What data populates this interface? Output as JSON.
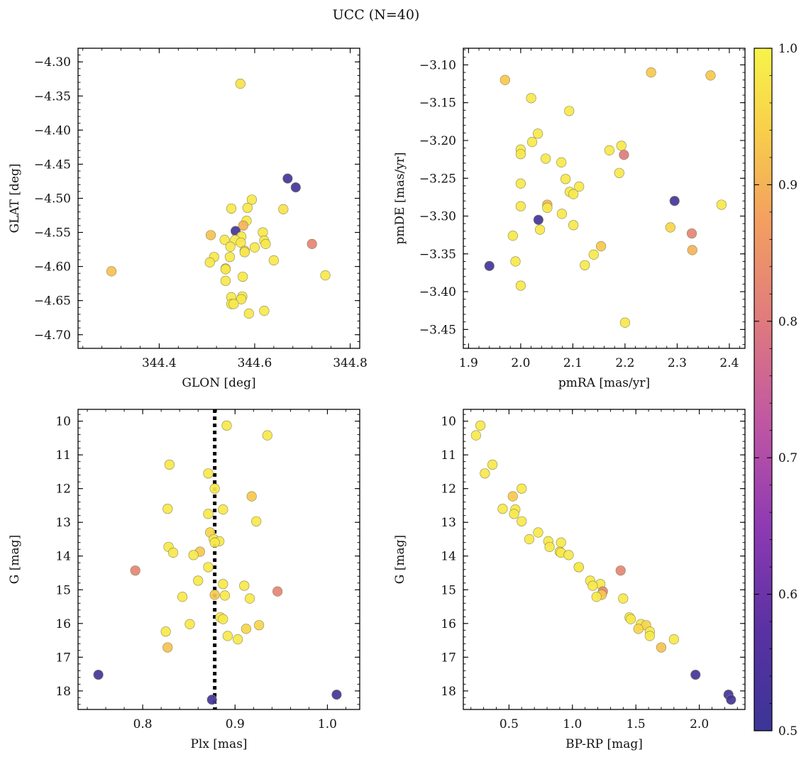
{
  "title": "UCC (N=40)",
  "colorbar": {
    "min": 0.5,
    "max": 1.0,
    "ticks": [
      0.5,
      0.6,
      0.7,
      0.8,
      0.9,
      1.0
    ],
    "tick_labels": [
      "0.5",
      "0.6",
      "0.7",
      "0.8",
      "0.9",
      "1.0"
    ],
    "colormap": "plasma"
  },
  "chart_data": [
    {
      "type": "scatter",
      "xlabel": "GLON [deg]",
      "ylabel": "GLAT [deg]",
      "xlim": [
        344.23,
        344.82
      ],
      "ylim": [
        -4.72,
        -4.28
      ],
      "y_inverted": false,
      "xticks": [
        344.4,
        344.6,
        344.8
      ],
      "xtick_labels": [
        "344.4",
        "344.6",
        "344.8"
      ],
      "yticks": [
        -4.3,
        -4.35,
        -4.4,
        -4.45,
        -4.5,
        -4.55,
        -4.6,
        -4.65,
        -4.7
      ],
      "ytick_labels": [
        "−4.30",
        "−4.35",
        "−4.40",
        "−4.45",
        "−4.50",
        "−4.55",
        "−4.60",
        "−4.65",
        "−4.70"
      ],
      "points": [
        {
          "x": 344.57,
          "y": -4.332,
          "c": 0.97
        },
        {
          "x": 344.669,
          "y": -4.471,
          "c": 0.52
        },
        {
          "x": 344.686,
          "y": -4.484,
          "c": 0.52
        },
        {
          "x": 344.594,
          "y": -4.502,
          "c": 0.98
        },
        {
          "x": 344.551,
          "y": -4.515,
          "c": 0.98
        },
        {
          "x": 344.585,
          "y": -4.514,
          "c": 0.98
        },
        {
          "x": 344.66,
          "y": -4.516,
          "c": 0.97
        },
        {
          "x": 344.583,
          "y": -4.533,
          "c": 0.98
        },
        {
          "x": 344.576,
          "y": -4.54,
          "c": 0.9
        },
        {
          "x": 344.56,
          "y": -4.548,
          "c": 0.52
        },
        {
          "x": 344.508,
          "y": -4.554,
          "c": 0.92
        },
        {
          "x": 344.617,
          "y": -4.55,
          "c": 0.98
        },
        {
          "x": 344.572,
          "y": -4.556,
          "c": 0.98
        },
        {
          "x": 344.559,
          "y": -4.561,
          "c": 0.98
        },
        {
          "x": 344.537,
          "y": -4.561,
          "c": 0.98
        },
        {
          "x": 344.62,
          "y": -4.562,
          "c": 0.98
        },
        {
          "x": 344.571,
          "y": -4.565,
          "c": 0.98
        },
        {
          "x": 344.623,
          "y": -4.567,
          "c": 0.98
        },
        {
          "x": 344.72,
          "y": -4.567,
          "c": 0.82
        },
        {
          "x": 344.549,
          "y": -4.571,
          "c": 0.98
        },
        {
          "x": 344.6,
          "y": -4.572,
          "c": 0.98
        },
        {
          "x": 344.579,
          "y": -4.577,
          "c": 0.93
        },
        {
          "x": 344.579,
          "y": -4.579,
          "c": 0.98
        },
        {
          "x": 344.515,
          "y": -4.586,
          "c": 0.98
        },
        {
          "x": 344.548,
          "y": -4.586,
          "c": 0.98
        },
        {
          "x": 344.64,
          "y": -4.591,
          "c": 0.98
        },
        {
          "x": 344.506,
          "y": -4.594,
          "c": 0.98
        },
        {
          "x": 344.539,
          "y": -4.603,
          "c": 0.93
        },
        {
          "x": 344.539,
          "y": -4.604,
          "c": 0.98
        },
        {
          "x": 344.3,
          "y": -4.607,
          "c": 0.92
        },
        {
          "x": 344.748,
          "y": -4.613,
          "c": 0.98
        },
        {
          "x": 344.575,
          "y": -4.615,
          "c": 0.98
        },
        {
          "x": 344.539,
          "y": -4.621,
          "c": 0.98
        },
        {
          "x": 344.574,
          "y": -4.644,
          "c": 0.98
        },
        {
          "x": 344.551,
          "y": -4.645,
          "c": 0.98
        },
        {
          "x": 344.572,
          "y": -4.648,
          "c": 0.98
        },
        {
          "x": 344.551,
          "y": -4.655,
          "c": 0.98
        },
        {
          "x": 344.62,
          "y": -4.665,
          "c": 0.98
        },
        {
          "x": 344.588,
          "y": -4.669,
          "c": 0.98
        },
        {
          "x": 344.556,
          "y": -4.655,
          "c": 0.98
        }
      ]
    },
    {
      "type": "scatter",
      "xlabel": "pmRA [mas/yr]",
      "ylabel": "pmDE [mas/yr]",
      "xlim": [
        1.89,
        2.43
      ],
      "ylim": [
        -3.475,
        -3.078
      ],
      "y_inverted": false,
      "xticks": [
        1.9,
        2.0,
        2.1,
        2.2,
        2.3,
        2.4
      ],
      "xtick_labels": [
        "1.9",
        "2.0",
        "2.1",
        "2.2",
        "2.3",
        "2.4"
      ],
      "yticks": [
        -3.1,
        -3.15,
        -3.2,
        -3.25,
        -3.3,
        -3.35,
        -3.4,
        -3.45
      ],
      "ytick_labels": [
        "−3.10",
        "−3.15",
        "−3.20",
        "−3.25",
        "−3.30",
        "−3.35",
        "−3.40",
        "−3.45"
      ],
      "points": [
        {
          "x": 1.97,
          "y": -3.12,
          "c": 0.93
        },
        {
          "x": 2.25,
          "y": -3.11,
          "c": 0.93
        },
        {
          "x": 2.364,
          "y": -3.114,
          "c": 0.93
        },
        {
          "x": 2.02,
          "y": -3.144,
          "c": 0.98
        },
        {
          "x": 2.093,
          "y": -3.161,
          "c": 0.98
        },
        {
          "x": 2.033,
          "y": -3.191,
          "c": 0.98
        },
        {
          "x": 2.022,
          "y": -3.202,
          "c": 0.98
        },
        {
          "x": 2.193,
          "y": -3.207,
          "c": 0.98
        },
        {
          "x": 2.0,
          "y": -3.212,
          "c": 0.98
        },
        {
          "x": 2.17,
          "y": -3.213,
          "c": 0.98
        },
        {
          "x": 2.0,
          "y": -3.218,
          "c": 0.98
        },
        {
          "x": 2.198,
          "y": -3.219,
          "c": 0.8
        },
        {
          "x": 2.048,
          "y": -3.224,
          "c": 0.98
        },
        {
          "x": 2.078,
          "y": -3.229,
          "c": 0.98
        },
        {
          "x": 2.189,
          "y": -3.243,
          "c": 0.98
        },
        {
          "x": 2.086,
          "y": -3.251,
          "c": 0.98
        },
        {
          "x": 2.0,
          "y": -3.257,
          "c": 0.98
        },
        {
          "x": 2.112,
          "y": -3.261,
          "c": 0.98
        },
        {
          "x": 2.094,
          "y": -3.268,
          "c": 0.98
        },
        {
          "x": 2.101,
          "y": -3.271,
          "c": 0.98
        },
        {
          "x": 2.295,
          "y": -3.28,
          "c": 0.52
        },
        {
          "x": 2.385,
          "y": -3.285,
          "c": 0.98
        },
        {
          "x": 2.051,
          "y": -3.285,
          "c": 0.9
        },
        {
          "x": 2.0,
          "y": -3.287,
          "c": 0.98
        },
        {
          "x": 2.051,
          "y": -3.289,
          "c": 0.98
        },
        {
          "x": 2.079,
          "y": -3.297,
          "c": 0.98
        },
        {
          "x": 2.034,
          "y": -3.305,
          "c": 0.52
        },
        {
          "x": 2.101,
          "y": -3.312,
          "c": 0.98
        },
        {
          "x": 2.287,
          "y": -3.315,
          "c": 0.95
        },
        {
          "x": 2.037,
          "y": -3.318,
          "c": 0.98
        },
        {
          "x": 2.328,
          "y": -3.323,
          "c": 0.82
        },
        {
          "x": 1.985,
          "y": -3.326,
          "c": 0.98
        },
        {
          "x": 2.154,
          "y": -3.34,
          "c": 0.93
        },
        {
          "x": 2.329,
          "y": -3.345,
          "c": 0.9
        },
        {
          "x": 2.14,
          "y": -3.351,
          "c": 0.98
        },
        {
          "x": 1.99,
          "y": -3.36,
          "c": 0.98
        },
        {
          "x": 2.123,
          "y": -3.365,
          "c": 0.98
        },
        {
          "x": 1.94,
          "y": -3.366,
          "c": 0.52
        },
        {
          "x": 2.0,
          "y": -3.392,
          "c": 0.98
        },
        {
          "x": 2.2,
          "y": -3.441,
          "c": 0.98
        }
      ]
    },
    {
      "type": "scatter",
      "xlabel": "Plx [mas]",
      "ylabel": "G [mag]",
      "xlim": [
        0.73,
        1.035
      ],
      "ylim": [
        18.55,
        9.65
      ],
      "y_inverted": true,
      "vline": {
        "x": 0.878,
        "style": "dotted"
      },
      "xticks": [
        0.8,
        0.9,
        1.0
      ],
      "xtick_labels": [
        "0.8",
        "0.9",
        "1.0"
      ],
      "yticks": [
        10,
        11,
        12,
        13,
        14,
        15,
        16,
        17,
        18
      ],
      "ytick_labels": [
        "10",
        "11",
        "12",
        "13",
        "14",
        "15",
        "16",
        "17",
        "18"
      ],
      "points": [
        {
          "x": 0.891,
          "y": 10.13,
          "c": 0.98
        },
        {
          "x": 0.935,
          "y": 10.42,
          "c": 0.98
        },
        {
          "x": 0.829,
          "y": 11.29,
          "c": 0.98
        },
        {
          "x": 0.871,
          "y": 11.55,
          "c": 0.98
        },
        {
          "x": 0.878,
          "y": 12.0,
          "c": 0.98
        },
        {
          "x": 0.918,
          "y": 12.23,
          "c": 0.93
        },
        {
          "x": 0.827,
          "y": 12.6,
          "c": 0.98
        },
        {
          "x": 0.887,
          "y": 12.62,
          "c": 0.98
        },
        {
          "x": 0.871,
          "y": 12.75,
          "c": 0.98
        },
        {
          "x": 0.923,
          "y": 12.97,
          "c": 0.98
        },
        {
          "x": 0.873,
          "y": 13.3,
          "c": 0.95
        },
        {
          "x": 0.877,
          "y": 13.5,
          "c": 0.98
        },
        {
          "x": 0.883,
          "y": 13.56,
          "c": 0.98
        },
        {
          "x": 0.878,
          "y": 13.6,
          "c": 0.98
        },
        {
          "x": 0.828,
          "y": 13.73,
          "c": 0.98
        },
        {
          "x": 0.862,
          "y": 13.87,
          "c": 0.93
        },
        {
          "x": 0.833,
          "y": 13.9,
          "c": 0.98
        },
        {
          "x": 0.855,
          "y": 13.97,
          "c": 0.98
        },
        {
          "x": 0.871,
          "y": 14.33,
          "c": 0.98
        },
        {
          "x": 0.792,
          "y": 14.43,
          "c": 0.82
        },
        {
          "x": 0.86,
          "y": 14.73,
          "c": 0.98
        },
        {
          "x": 0.887,
          "y": 14.83,
          "c": 0.98
        },
        {
          "x": 0.91,
          "y": 14.88,
          "c": 0.98
        },
        {
          "x": 0.946,
          "y": 15.05,
          "c": 0.82
        },
        {
          "x": 0.878,
          "y": 15.15,
          "c": 0.93
        },
        {
          "x": 0.889,
          "y": 15.17,
          "c": 0.98
        },
        {
          "x": 0.843,
          "y": 15.21,
          "c": 0.98
        },
        {
          "x": 0.916,
          "y": 15.26,
          "c": 0.98
        },
        {
          "x": 0.884,
          "y": 15.82,
          "c": 0.98
        },
        {
          "x": 0.887,
          "y": 15.87,
          "c": 0.98
        },
        {
          "x": 0.851,
          "y": 16.02,
          "c": 0.98
        },
        {
          "x": 0.926,
          "y": 16.05,
          "c": 0.95
        },
        {
          "x": 0.912,
          "y": 16.16,
          "c": 0.95
        },
        {
          "x": 0.825,
          "y": 16.24,
          "c": 0.98
        },
        {
          "x": 0.892,
          "y": 16.37,
          "c": 0.98
        },
        {
          "x": 0.903,
          "y": 16.47,
          "c": 0.98
        },
        {
          "x": 0.827,
          "y": 16.71,
          "c": 0.92
        },
        {
          "x": 0.752,
          "y": 17.52,
          "c": 0.52
        },
        {
          "x": 1.01,
          "y": 18.11,
          "c": 0.52
        },
        {
          "x": 0.875,
          "y": 18.26,
          "c": 0.52
        }
      ]
    },
    {
      "type": "scatter",
      "xlabel": "BP-RP [mag]",
      "ylabel": "G [mag]",
      "xlim": [
        0.14,
        2.36
      ],
      "ylim": [
        18.55,
        9.65
      ],
      "y_inverted": true,
      "xticks": [
        0.5,
        1.0,
        1.5,
        2.0
      ],
      "xtick_labels": [
        "0.5",
        "1.0",
        "1.5",
        "2.0"
      ],
      "yticks": [
        10,
        11,
        12,
        13,
        14,
        15,
        16,
        17,
        18
      ],
      "ytick_labels": [
        "10",
        "11",
        "12",
        "13",
        "14",
        "15",
        "16",
        "17",
        "18"
      ],
      "points": [
        {
          "x": 0.275,
          "y": 10.13,
          "c": 0.98
        },
        {
          "x": 0.24,
          "y": 10.42,
          "c": 0.98
        },
        {
          "x": 0.37,
          "y": 11.29,
          "c": 0.98
        },
        {
          "x": 0.31,
          "y": 11.55,
          "c": 0.98
        },
        {
          "x": 0.6,
          "y": 12.0,
          "c": 0.98
        },
        {
          "x": 0.53,
          "y": 12.23,
          "c": 0.93
        },
        {
          "x": 0.45,
          "y": 12.6,
          "c": 0.98
        },
        {
          "x": 0.55,
          "y": 12.62,
          "c": 0.98
        },
        {
          "x": 0.54,
          "y": 12.75,
          "c": 0.98
        },
        {
          "x": 0.6,
          "y": 12.97,
          "c": 0.98
        },
        {
          "x": 0.73,
          "y": 13.3,
          "c": 0.98
        },
        {
          "x": 0.66,
          "y": 13.5,
          "c": 0.98
        },
        {
          "x": 0.81,
          "y": 13.56,
          "c": 0.98
        },
        {
          "x": 0.91,
          "y": 13.6,
          "c": 0.98
        },
        {
          "x": 0.82,
          "y": 13.73,
          "c": 0.98
        },
        {
          "x": 0.9,
          "y": 13.87,
          "c": 0.98
        },
        {
          "x": 0.91,
          "y": 13.9,
          "c": 0.98
        },
        {
          "x": 0.97,
          "y": 13.97,
          "c": 0.98
        },
        {
          "x": 1.05,
          "y": 14.33,
          "c": 0.98
        },
        {
          "x": 1.38,
          "y": 14.43,
          "c": 0.82
        },
        {
          "x": 1.14,
          "y": 14.73,
          "c": 0.98
        },
        {
          "x": 1.22,
          "y": 14.83,
          "c": 0.98
        },
        {
          "x": 1.16,
          "y": 14.88,
          "c": 0.98
        },
        {
          "x": 1.24,
          "y": 15.05,
          "c": 0.82
        },
        {
          "x": 1.23,
          "y": 15.15,
          "c": 0.93
        },
        {
          "x": 1.19,
          "y": 15.21,
          "c": 0.98
        },
        {
          "x": 1.4,
          "y": 15.26,
          "c": 0.98
        },
        {
          "x": 1.45,
          "y": 15.82,
          "c": 0.98
        },
        {
          "x": 1.46,
          "y": 15.87,
          "c": 0.98
        },
        {
          "x": 1.54,
          "y": 16.02,
          "c": 0.98
        },
        {
          "x": 1.58,
          "y": 16.05,
          "c": 0.95
        },
        {
          "x": 1.52,
          "y": 16.16,
          "c": 0.95
        },
        {
          "x": 1.61,
          "y": 16.24,
          "c": 0.98
        },
        {
          "x": 1.61,
          "y": 16.37,
          "c": 0.98
        },
        {
          "x": 1.8,
          "y": 16.47,
          "c": 0.98
        },
        {
          "x": 1.7,
          "y": 16.71,
          "c": 0.92
        },
        {
          "x": 1.97,
          "y": 17.52,
          "c": 0.52
        },
        {
          "x": 2.23,
          "y": 18.11,
          "c": 0.52
        },
        {
          "x": 2.25,
          "y": 18.26,
          "c": 0.52
        },
        {
          "x": 1.05,
          "y": 14.33,
          "c": 0.98
        }
      ]
    }
  ]
}
